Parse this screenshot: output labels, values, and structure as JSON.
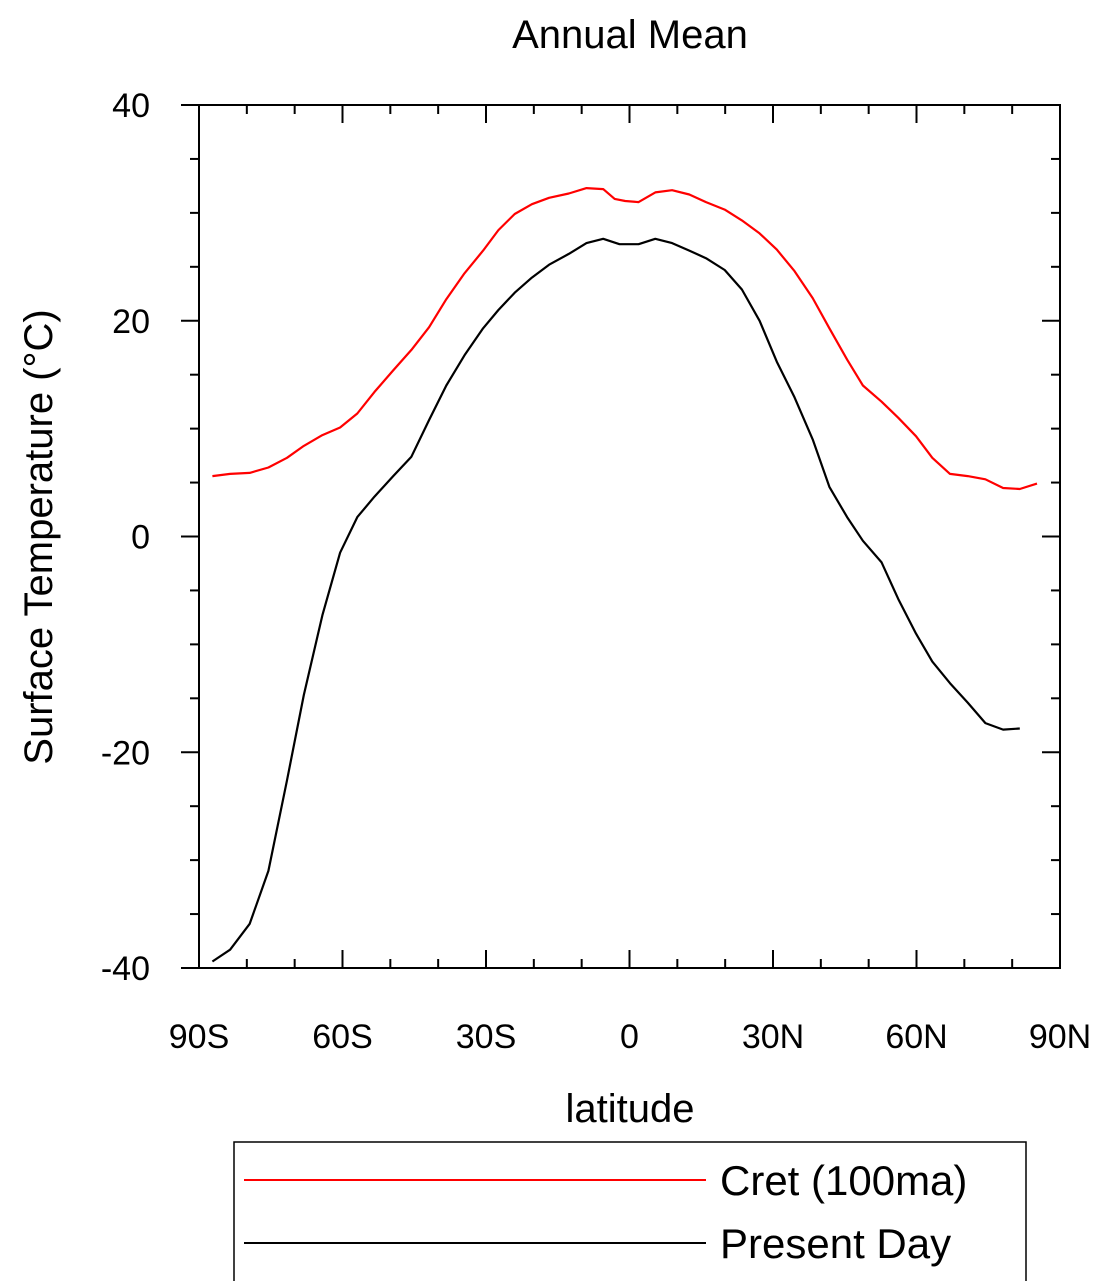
{
  "chart_data": {
    "type": "line",
    "title": "Annual Mean",
    "xlabel": "latitude",
    "ylabel": "Surface Temperature (°C)",
    "xlim": [
      -90,
      90
    ],
    "ylim": [
      -40,
      40
    ],
    "x_ticks": [
      {
        "value": -90,
        "label": "90S"
      },
      {
        "value": -60,
        "label": "60S"
      },
      {
        "value": -30,
        "label": "30S"
      },
      {
        "value": 0,
        "label": "0"
      },
      {
        "value": 30,
        "label": "30N"
      },
      {
        "value": 60,
        "label": "60N"
      },
      {
        "value": 90,
        "label": "90N"
      }
    ],
    "y_ticks": [
      {
        "value": 40,
        "label": "40"
      },
      {
        "value": 20,
        "label": "20"
      },
      {
        "value": 0,
        "label": "0"
      },
      {
        "value": -20,
        "label": "-20"
      },
      {
        "value": -40,
        "label": "-40"
      }
    ],
    "grid": false,
    "legend": {
      "placement": "bottom"
    },
    "series": [
      {
        "name": "Cret (100ma)",
        "color": "#ff0000",
        "points": [
          [
            -87.2,
            5.6
          ],
          [
            -83.5,
            5.8
          ],
          [
            -79.4,
            5.9
          ],
          [
            -75.5,
            6.4
          ],
          [
            -71.6,
            7.3
          ],
          [
            -68.1,
            8.4
          ],
          [
            -64.2,
            9.4
          ],
          [
            -60.5,
            10.1
          ],
          [
            -56.9,
            11.4
          ],
          [
            -53.3,
            13.4
          ],
          [
            -49.4,
            15.4
          ],
          [
            -45.6,
            17.3
          ],
          [
            -41.9,
            19.4
          ],
          [
            -38.3,
            22.0
          ],
          [
            -34.5,
            24.4
          ],
          [
            -30.6,
            26.5
          ],
          [
            -27.4,
            28.4
          ],
          [
            -24.0,
            29.9
          ],
          [
            -20.4,
            30.8
          ],
          [
            -16.8,
            31.4
          ],
          [
            -12.7,
            31.8
          ],
          [
            -9.0,
            32.3
          ],
          [
            -5.5,
            32.2
          ],
          [
            -3.1,
            31.3
          ],
          [
            -0.9,
            31.1
          ],
          [
            1.9,
            31.0
          ],
          [
            5.4,
            31.9
          ],
          [
            8.9,
            32.1
          ],
          [
            12.5,
            31.7
          ],
          [
            16.0,
            31.0
          ],
          [
            19.9,
            30.3
          ],
          [
            23.5,
            29.3
          ],
          [
            27.2,
            28.1
          ],
          [
            30.8,
            26.6
          ],
          [
            34.5,
            24.6
          ],
          [
            38.3,
            22.1
          ],
          [
            41.8,
            19.3
          ],
          [
            45.5,
            16.4
          ],
          [
            48.8,
            14.0
          ],
          [
            52.7,
            12.5
          ],
          [
            56.2,
            11.0
          ],
          [
            59.9,
            9.3
          ],
          [
            63.3,
            7.3
          ],
          [
            67.0,
            5.8
          ],
          [
            70.7,
            5.6
          ],
          [
            74.4,
            5.3
          ],
          [
            78.1,
            4.5
          ],
          [
            81.6,
            4.4
          ],
          [
            85.2,
            4.9
          ]
        ]
      },
      {
        "name": "Present Day",
        "color": "#000000",
        "points": [
          [
            -87.2,
            -39.4
          ],
          [
            -83.5,
            -38.3
          ],
          [
            -79.4,
            -35.9
          ],
          [
            -75.5,
            -31.0
          ],
          [
            -71.6,
            -22.6
          ],
          [
            -68.1,
            -14.7
          ],
          [
            -64.2,
            -7.3
          ],
          [
            -60.5,
            -1.5
          ],
          [
            -56.9,
            1.8
          ],
          [
            -53.3,
            3.7
          ],
          [
            -49.4,
            5.6
          ],
          [
            -45.6,
            7.4
          ],
          [
            -41.9,
            10.8
          ],
          [
            -38.3,
            14.0
          ],
          [
            -34.5,
            16.8
          ],
          [
            -30.6,
            19.3
          ],
          [
            -27.4,
            21.0
          ],
          [
            -24.0,
            22.6
          ],
          [
            -20.4,
            24.0
          ],
          [
            -16.8,
            25.2
          ],
          [
            -12.7,
            26.2
          ],
          [
            -9.0,
            27.2
          ],
          [
            -5.5,
            27.6
          ],
          [
            -2.1,
            27.1
          ],
          [
            1.9,
            27.1
          ],
          [
            5.4,
            27.6
          ],
          [
            8.9,
            27.2
          ],
          [
            12.5,
            26.5
          ],
          [
            16.0,
            25.8
          ],
          [
            19.9,
            24.7
          ],
          [
            23.5,
            22.9
          ],
          [
            27.2,
            20.0
          ],
          [
            30.8,
            16.2
          ],
          [
            34.5,
            12.9
          ],
          [
            38.3,
            9.0
          ],
          [
            41.8,
            4.6
          ],
          [
            45.5,
            1.8
          ],
          [
            48.8,
            -0.4
          ],
          [
            52.7,
            -2.4
          ],
          [
            56.2,
            -5.8
          ],
          [
            59.9,
            -9.0
          ],
          [
            63.3,
            -11.6
          ],
          [
            67.0,
            -13.6
          ],
          [
            70.7,
            -15.4
          ],
          [
            74.4,
            -17.3
          ],
          [
            78.1,
            -17.9
          ],
          [
            81.6,
            -17.8
          ]
        ]
      }
    ]
  }
}
